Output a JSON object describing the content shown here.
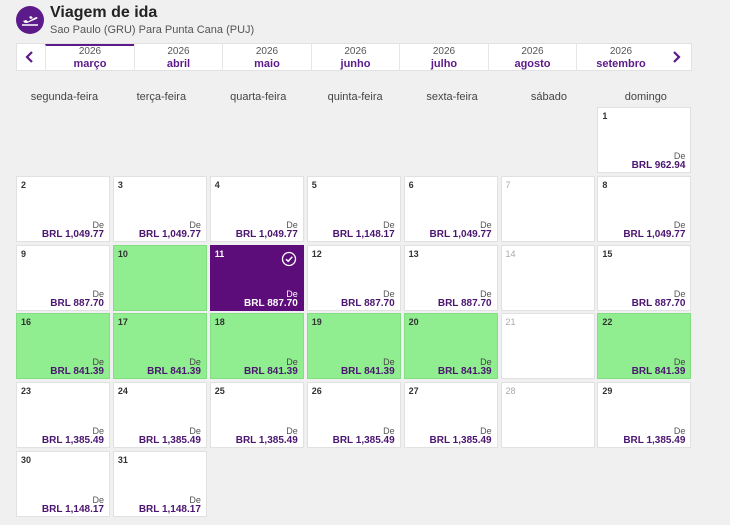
{
  "header": {
    "title": "Viagem de ida",
    "subtitle": "Sao Paulo (GRU) Para Punta Cana (PUJ)"
  },
  "months": [
    {
      "year": "2026",
      "name": "março",
      "active": true
    },
    {
      "year": "2026",
      "name": "abril"
    },
    {
      "year": "2026",
      "name": "maio"
    },
    {
      "year": "2026",
      "name": "junho"
    },
    {
      "year": "2026",
      "name": "julho"
    },
    {
      "year": "2026",
      "name": "agosto"
    },
    {
      "year": "2026",
      "name": "setembro"
    }
  ],
  "weekdays": [
    "segunda-feira",
    "terça-feira",
    "quarta-feira",
    "quinta-feira",
    "sexta-feira",
    "sábado",
    "domingo"
  ],
  "price_prefix": "De",
  "colors": {
    "brand": "#5c0d7a",
    "lowest_fare": "#90ee90",
    "price_text": "#4b1570"
  },
  "days": [
    {
      "day": "1",
      "price": "BRL 962.94"
    },
    {
      "day": "2",
      "price": "BRL 1,049.77"
    },
    {
      "day": "3",
      "price": "BRL 1,049.77"
    },
    {
      "day": "4",
      "price": "BRL 1,049.77"
    },
    {
      "day": "5",
      "price": "BRL 1,148.17"
    },
    {
      "day": "6",
      "price": "BRL 1,049.77"
    },
    {
      "day": "7",
      "price": null
    },
    {
      "day": "8",
      "price": "BRL 1,049.77"
    },
    {
      "day": "9",
      "price": "BRL 887.70"
    },
    {
      "day": "10",
      "price": null,
      "lowest": true
    },
    {
      "day": "11",
      "price": "BRL 887.70",
      "selected": true
    },
    {
      "day": "12",
      "price": "BRL 887.70"
    },
    {
      "day": "13",
      "price": "BRL 887.70"
    },
    {
      "day": "14",
      "price": null
    },
    {
      "day": "15",
      "price": "BRL 887.70"
    },
    {
      "day": "16",
      "price": "BRL 841.39",
      "lowest": true
    },
    {
      "day": "17",
      "price": "BRL 841.39",
      "lowest": true
    },
    {
      "day": "18",
      "price": "BRL 841.39",
      "lowest": true
    },
    {
      "day": "19",
      "price": "BRL 841.39",
      "lowest": true
    },
    {
      "day": "20",
      "price": "BRL 841.39",
      "lowest": true
    },
    {
      "day": "21",
      "price": null
    },
    {
      "day": "22",
      "price": "BRL 841.39",
      "lowest": true
    },
    {
      "day": "23",
      "price": "BRL 1,385.49"
    },
    {
      "day": "24",
      "price": "BRL 1,385.49"
    },
    {
      "day": "25",
      "price": "BRL 1,385.49"
    },
    {
      "day": "26",
      "price": "BRL 1,385.49"
    },
    {
      "day": "27",
      "price": "BRL 1,385.49"
    },
    {
      "day": "28",
      "price": null
    },
    {
      "day": "29",
      "price": "BRL 1,385.49"
    },
    {
      "day": "30",
      "price": "BRL 1,148.17"
    },
    {
      "day": "31",
      "price": "BRL 1,148.17"
    }
  ]
}
